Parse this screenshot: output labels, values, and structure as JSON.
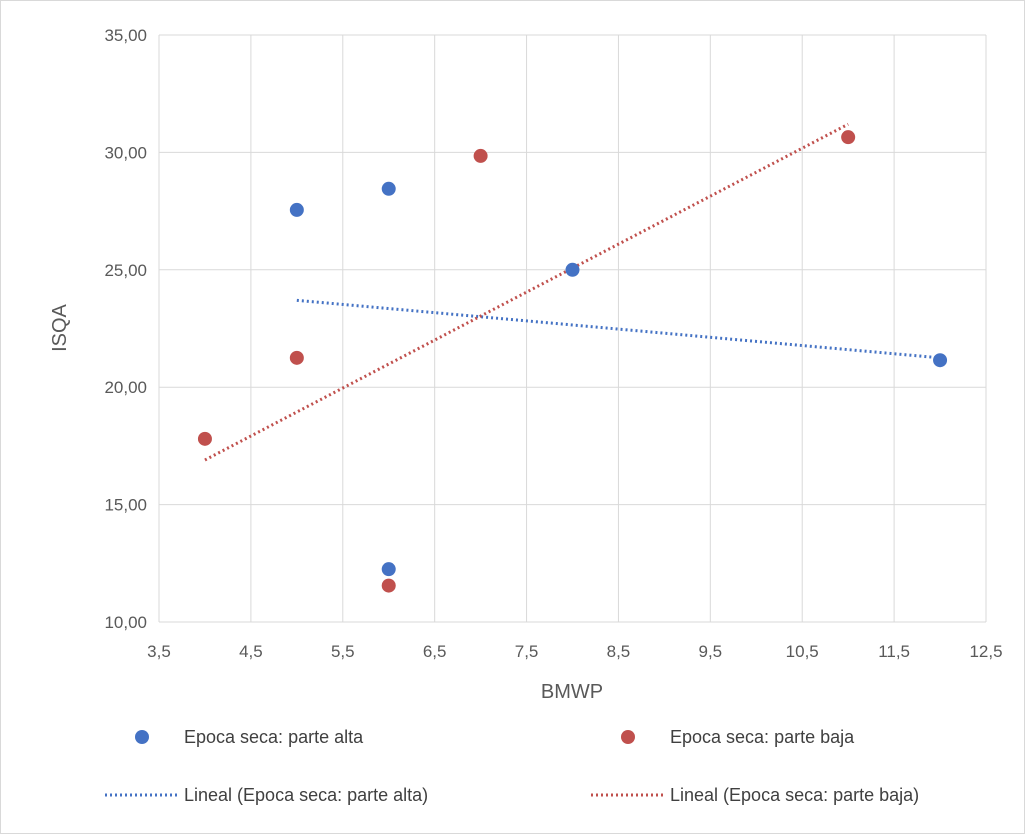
{
  "chart_data": {
    "type": "scatter",
    "xlabel": "BMWP",
    "ylabel": "ISQA",
    "xlim": [
      3.5,
      12.5
    ],
    "ylim": [
      10,
      35
    ],
    "x_ticks": [
      3.5,
      4.5,
      5.5,
      6.5,
      7.5,
      8.5,
      9.5,
      10.5,
      11.5,
      12.5
    ],
    "x_tick_labels": [
      "3,5",
      "4,5",
      "5,5",
      "6,5",
      "7,5",
      "8,5",
      "9,5",
      "10,5",
      "11,5",
      "12,5"
    ],
    "y_ticks": [
      10,
      15,
      20,
      25,
      30,
      35
    ],
    "y_tick_labels": [
      "10,00",
      "15,00",
      "20,00",
      "25,00",
      "30,00",
      "35,00"
    ],
    "grid": true,
    "legend_position": "bottom",
    "series": [
      {
        "name": "Epoca seca: parte alta",
        "color": "#4472c4",
        "points": [
          [
            5,
            27.55
          ],
          [
            6,
            28.45
          ],
          [
            8,
            25.0
          ],
          [
            12,
            21.15
          ],
          [
            6,
            12.25
          ]
        ]
      },
      {
        "name": "Epoca seca: parte baja",
        "color": "#c0504d",
        "points": [
          [
            4,
            17.8
          ],
          [
            5,
            21.25
          ],
          [
            6,
            11.55
          ],
          [
            7,
            29.85
          ],
          [
            11,
            30.65
          ]
        ]
      }
    ],
    "trendlines": [
      {
        "name": "Lineal (Epoca seca: parte alta)",
        "color": "#4472c4",
        "from": [
          5,
          23.7
        ],
        "to": [
          12,
          21.25
        ]
      },
      {
        "name": "Lineal (Epoca seca: parte baja)",
        "color": "#c0504d",
        "from": [
          4,
          16.9
        ],
        "to": [
          11,
          31.2
        ]
      }
    ]
  }
}
